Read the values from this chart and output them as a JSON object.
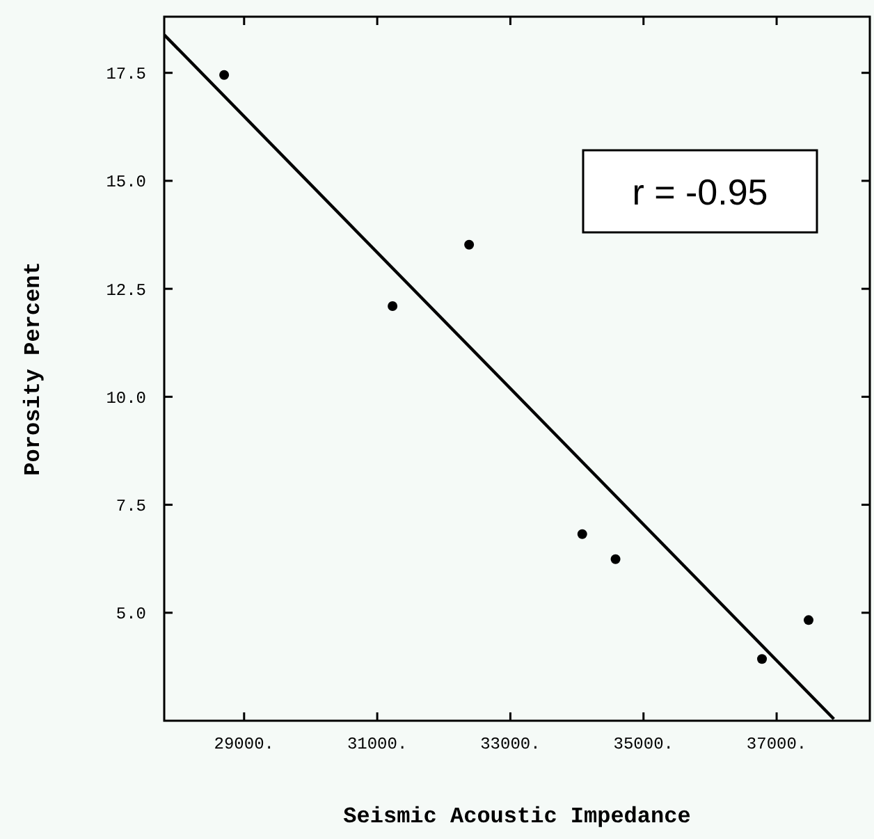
{
  "chart_data": {
    "type": "scatter",
    "xlabel": "Seismic Acoustic Impedance",
    "ylabel": "Porosity Percent",
    "annotations": [
      "r = -0.95"
    ],
    "xlim": [
      27800,
      38400
    ],
    "ylim": [
      2.5,
      18.8
    ],
    "xticks": [
      {
        "value": 29000,
        "label": "29000."
      },
      {
        "value": 31000,
        "label": "31000."
      },
      {
        "value": 33000,
        "label": "33000."
      },
      {
        "value": 35000,
        "label": "35000."
      },
      {
        "value": 37000,
        "label": "37000."
      }
    ],
    "yticks": [
      {
        "value": 5,
        "label": "5.0"
      },
      {
        "value": 7.5,
        "label": "7.5"
      },
      {
        "value": 10,
        "label": "10.0"
      },
      {
        "value": 12.5,
        "label": "12.5"
      },
      {
        "value": 15,
        "label": "15.0"
      },
      {
        "value": 17.5,
        "label": "17.5"
      }
    ],
    "grid": false,
    "series": [
      {
        "color": "#000000",
        "marker": "circle",
        "x": [
          28700,
          31230,
          32380,
          34080,
          34580,
          36780,
          37480
        ],
        "values": [
          17.45,
          12.1,
          13.52,
          6.82,
          6.24,
          3.93,
          4.83
        ]
      },
      {
        "type": "line",
        "color": "#000000",
        "line_style": "solid",
        "marker": "none",
        "x": [
          27800,
          37860
        ],
        "values": [
          18.38,
          2.54
        ]
      }
    ]
  }
}
